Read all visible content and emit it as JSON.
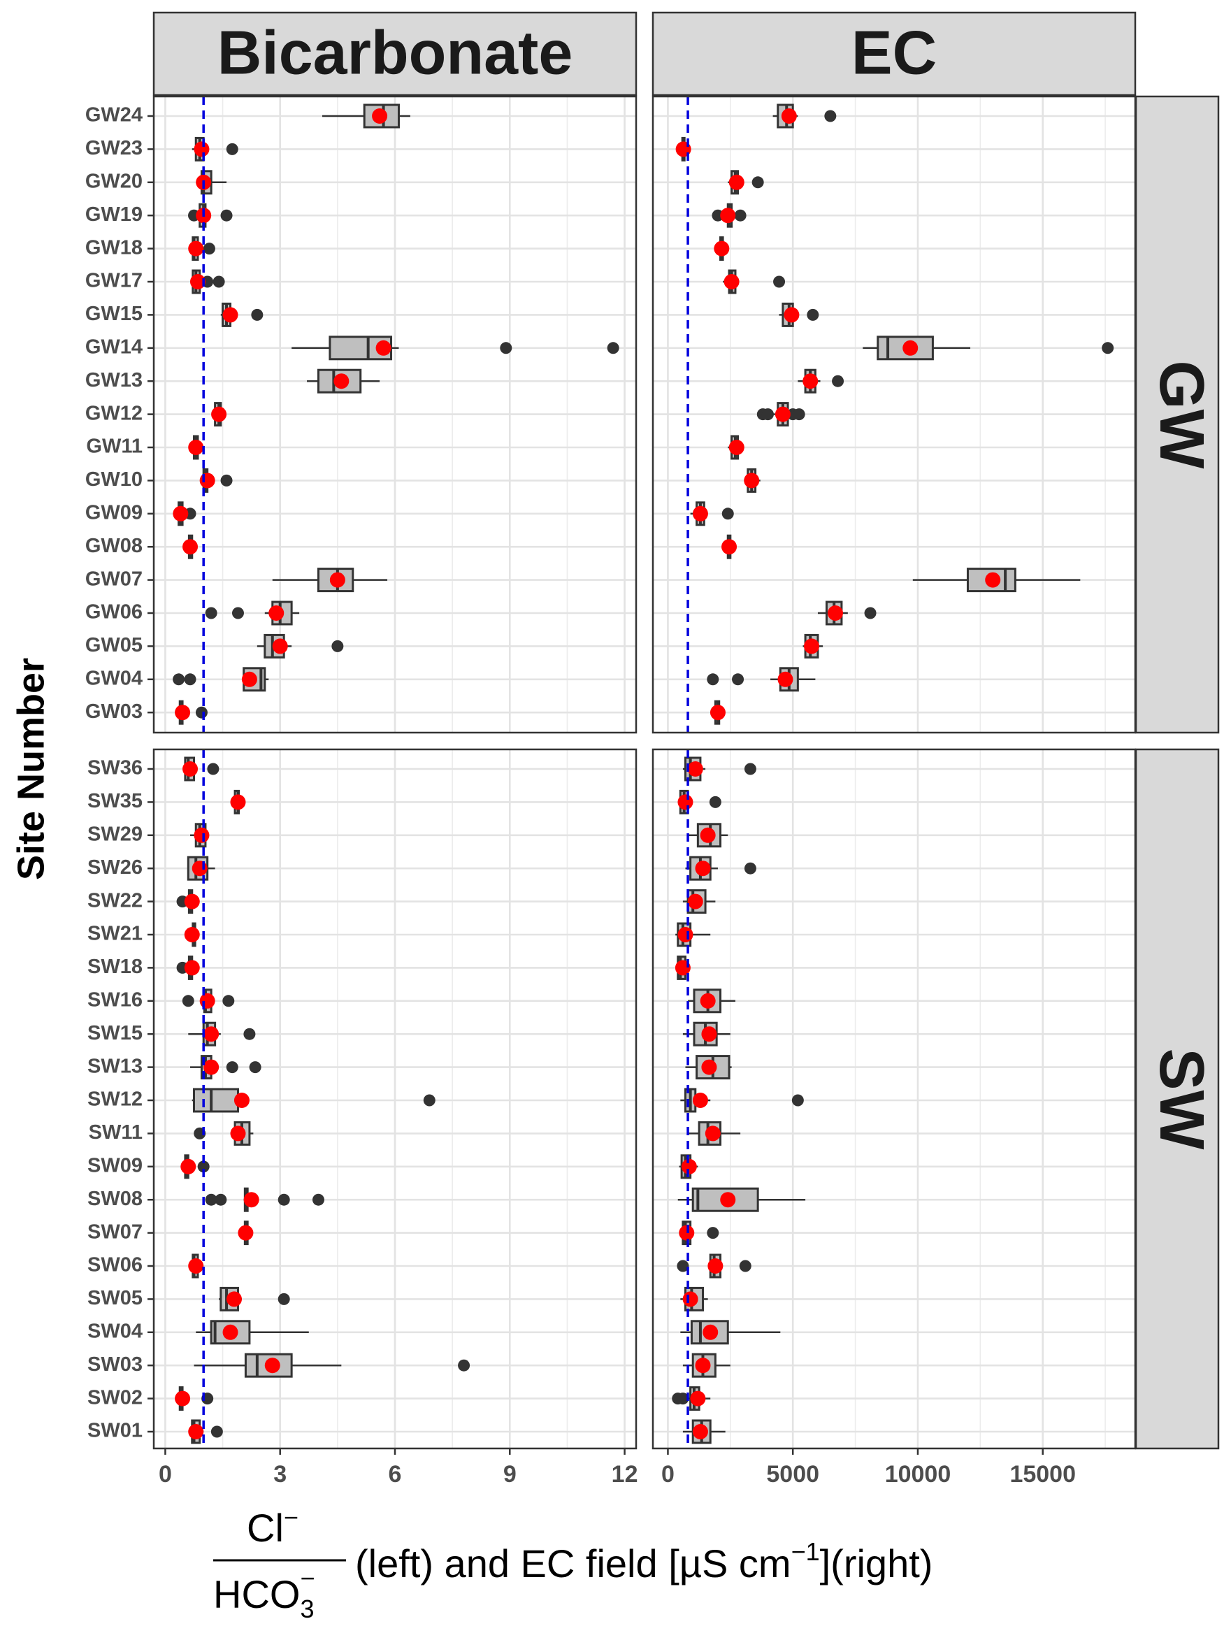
{
  "chart_data": {
    "type": "boxplot",
    "facets": {
      "columns": [
        "Bicarbonate",
        "EC"
      ],
      "rows": [
        "GW",
        "SW"
      ]
    },
    "ylabel": "Site Number",
    "xlabel": {
      "numerator": "Cl",
      "numerator_sup": "−",
      "denominator": "HCO",
      "denominator_sub": "3",
      "denominator_sup": "−",
      "text": "(left) and EC field [µS cm",
      "unit_sup": "−1",
      "tail": "](right)"
    },
    "x_axes": {
      "Bicarbonate": {
        "range": [
          -0.3,
          12.3
        ],
        "ticks": [
          0,
          3,
          6,
          9,
          12
        ],
        "tick_labels": [
          "0",
          "3",
          "6",
          "9",
          "12"
        ],
        "reference_line": 1
      },
      "EC": {
        "range": [
          -600,
          18700
        ],
        "ticks": [
          0,
          5000,
          10000,
          15000
        ],
        "tick_labels": [
          "0",
          "5000",
          "10000",
          "15000"
        ],
        "reference_line": 800
      }
    },
    "sites": {
      "GW": [
        "GW24",
        "GW23",
        "GW20",
        "GW19",
        "GW18",
        "GW17",
        "GW15",
        "GW14",
        "GW13",
        "GW12",
        "GW11",
        "GW10",
        "GW09",
        "GW08",
        "GW07",
        "GW06",
        "GW05",
        "GW04",
        "GW03"
      ],
      "SW": [
        "SW36",
        "SW35",
        "SW29",
        "SW26",
        "SW22",
        "SW21",
        "SW18",
        "SW16",
        "SW15",
        "SW13",
        "SW12",
        "SW11",
        "SW09",
        "SW08",
        "SW07",
        "SW06",
        "SW05",
        "SW04",
        "SW03",
        "SW02",
        "SW01"
      ]
    },
    "series": {
      "Bicarbonate": {
        "GW": [
          [
            4.1,
            5.2,
            5.7,
            6.1,
            6.4,
            5.6,
            []
          ],
          [
            0.7,
            0.8,
            0.9,
            1.0,
            1.1,
            0.95,
            [
              1.75
            ]
          ],
          [
            0.9,
            0.95,
            1.0,
            1.2,
            1.6,
            1.0,
            []
          ],
          [
            0.85,
            0.9,
            1.0,
            1.05,
            1.1,
            1.0,
            [
              0.75,
              1.6
            ]
          ],
          [
            0.7,
            0.72,
            0.75,
            0.85,
            0.9,
            0.8,
            [
              1.15
            ]
          ],
          [
            0.7,
            0.72,
            0.8,
            0.9,
            1.0,
            0.85,
            [
              1.1,
              1.4
            ]
          ],
          [
            1.45,
            1.5,
            1.6,
            1.7,
            1.75,
            1.7,
            [
              2.4
            ]
          ],
          [
            3.3,
            4.3,
            5.3,
            5.9,
            6.1,
            5.7,
            [
              8.9,
              11.7
            ]
          ],
          [
            3.7,
            4.0,
            4.4,
            5.1,
            5.6,
            4.6,
            []
          ],
          [
            1.25,
            1.3,
            1.4,
            1.45,
            1.5,
            1.4,
            []
          ],
          [
            0.7,
            0.75,
            0.8,
            0.85,
            0.9,
            0.8,
            []
          ],
          [
            0.95,
            1.0,
            1.05,
            1.1,
            1.15,
            1.1,
            [
              1.6
            ]
          ],
          [
            0.35,
            0.35,
            0.4,
            0.45,
            0.5,
            0.4,
            [
              0.65
            ]
          ],
          [
            0.6,
            0.62,
            0.65,
            0.7,
            0.72,
            0.65,
            []
          ],
          [
            2.8,
            4.0,
            4.5,
            4.9,
            5.8,
            4.5,
            []
          ],
          [
            2.6,
            2.8,
            3.0,
            3.3,
            3.5,
            2.9,
            [
              1.2,
              1.9
            ]
          ],
          [
            2.4,
            2.6,
            2.8,
            3.1,
            3.3,
            3.0,
            [
              4.5
            ]
          ],
          [
            2.0,
            2.05,
            2.5,
            2.6,
            2.7,
            2.2,
            [
              0.35,
              0.65
            ]
          ],
          [
            0.35,
            0.38,
            0.4,
            0.45,
            0.5,
            0.45,
            [
              0.95
            ]
          ]
        ],
        "SW": [
          [
            0.5,
            0.52,
            0.6,
            0.75,
            0.8,
            0.65,
            [
              1.25
            ]
          ],
          [
            1.8,
            1.82,
            1.9,
            1.92,
            1.95,
            1.9,
            []
          ],
          [
            0.65,
            0.8,
            0.9,
            1.05,
            1.1,
            0.95,
            []
          ],
          [
            0.6,
            0.6,
            0.8,
            1.1,
            1.3,
            0.9,
            []
          ],
          [
            0.6,
            0.62,
            0.65,
            0.7,
            0.75,
            0.7,
            [
              0.45
            ]
          ],
          [
            0.7,
            0.72,
            0.75,
            0.78,
            0.8,
            0.7,
            []
          ],
          [
            0.6,
            0.62,
            0.65,
            0.7,
            0.75,
            0.7,
            [
              0.45
            ]
          ],
          [
            1.0,
            1.02,
            1.05,
            1.2,
            1.25,
            1.1,
            [
              0.6,
              1.65
            ]
          ],
          [
            0.6,
            1.0,
            1.1,
            1.3,
            1.45,
            1.2,
            [
              2.2
            ]
          ],
          [
            0.65,
            0.95,
            1.05,
            1.2,
            1.3,
            1.2,
            [
              1.75,
              2.35
            ]
          ],
          [
            0.7,
            0.75,
            1.2,
            1.9,
            2.0,
            2.0,
            [
              6.9
            ]
          ],
          [
            1.8,
            1.82,
            2.0,
            2.2,
            2.3,
            1.9,
            [
              0.9
            ]
          ],
          [
            0.5,
            0.52,
            0.55,
            0.6,
            0.62,
            0.6,
            [
              1.0
            ]
          ],
          [
            2.05,
            2.08,
            2.1,
            2.15,
            2.2,
            2.25,
            [
              1.2,
              1.45,
              3.1,
              4.0
            ]
          ],
          [
            2.05,
            2.08,
            2.1,
            2.15,
            2.2,
            2.1,
            []
          ],
          [
            0.7,
            0.72,
            0.75,
            0.85,
            0.9,
            0.8,
            []
          ],
          [
            1.4,
            1.45,
            1.6,
            1.9,
            2.0,
            1.8,
            [
              3.1
            ]
          ],
          [
            0.8,
            1.2,
            1.3,
            2.2,
            3.75,
            1.7,
            []
          ],
          [
            0.75,
            2.1,
            2.4,
            3.3,
            4.6,
            2.8,
            [
              7.8
            ]
          ],
          [
            0.35,
            0.38,
            0.4,
            0.45,
            0.5,
            0.45,
            [
              1.1
            ]
          ],
          [
            0.65,
            0.7,
            0.75,
            0.9,
            1.0,
            0.8,
            [
              1.35
            ]
          ]
        ]
      },
      "EC": {
        "GW": [
          [
            4200,
            4400,
            4750,
            5000,
            5200,
            4850,
            [
              6500
            ]
          ],
          [
            550,
            580,
            620,
            660,
            700,
            620,
            []
          ],
          [
            2400,
            2550,
            2700,
            2800,
            2900,
            2750,
            [
              3600
            ]
          ],
          [
            2300,
            2400,
            2450,
            2550,
            2650,
            2400,
            [
              2000,
              2900
            ]
          ],
          [
            2050,
            2100,
            2150,
            2200,
            2250,
            2150,
            []
          ],
          [
            2200,
            2450,
            2550,
            2700,
            2800,
            2550,
            [
              4450
            ]
          ],
          [
            4450,
            4600,
            4850,
            5000,
            5150,
            4950,
            [
              5800
            ]
          ],
          [
            7800,
            8400,
            8800,
            10600,
            12100,
            9700,
            [
              17600
            ]
          ],
          [
            5200,
            5500,
            5700,
            5900,
            6100,
            5700,
            [
              6800
            ]
          ],
          [
            4200,
            4400,
            4600,
            4800,
            5000,
            4600,
            [
              3800,
              4000,
              5000,
              5250
            ]
          ],
          [
            2400,
            2550,
            2700,
            2800,
            2900,
            2750,
            []
          ],
          [
            3100,
            3200,
            3350,
            3500,
            3700,
            3350,
            []
          ],
          [
            900,
            1150,
            1300,
            1450,
            1550,
            1300,
            [
              2400
            ]
          ],
          [
            2350,
            2400,
            2450,
            2500,
            2550,
            2450,
            []
          ],
          [
            9800,
            12000,
            13500,
            13900,
            16500,
            13000,
            []
          ],
          [
            6000,
            6350,
            6650,
            6950,
            7200,
            6700,
            [
              8100
            ]
          ],
          [
            5400,
            5500,
            5700,
            6000,
            6200,
            5750,
            []
          ],
          [
            4100,
            4500,
            4850,
            5200,
            5900,
            4700,
            [
              1800,
              2800
            ]
          ],
          [
            1800,
            1900,
            2000,
            2050,
            2100,
            2000,
            []
          ]
        ],
        "SW": [
          [
            600,
            700,
            900,
            1300,
            1500,
            1100,
            [
              3300
            ]
          ],
          [
            400,
            500,
            650,
            800,
            900,
            700,
            [
              1900
            ]
          ],
          [
            800,
            1200,
            1700,
            2100,
            2400,
            1600,
            []
          ],
          [
            700,
            900,
            1300,
            1700,
            2000,
            1400,
            [
              3300
            ]
          ],
          [
            600,
            800,
            1000,
            1500,
            1900,
            1100,
            []
          ],
          [
            300,
            400,
            600,
            900,
            1700,
            700,
            []
          ],
          [
            350,
            400,
            500,
            700,
            800,
            600,
            []
          ],
          [
            800,
            1050,
            1600,
            2100,
            2700,
            1600,
            []
          ],
          [
            600,
            1050,
            1500,
            1950,
            2500,
            1650,
            []
          ],
          [
            700,
            1150,
            1800,
            2450,
            2550,
            1650,
            []
          ],
          [
            500,
            700,
            900,
            1100,
            1700,
            1300,
            [
              5200
            ]
          ],
          [
            800,
            1250,
            1600,
            2100,
            2900,
            1800,
            []
          ],
          [
            450,
            550,
            700,
            900,
            1200,
            850,
            []
          ],
          [
            400,
            1000,
            1200,
            3600,
            5500,
            2400,
            []
          ],
          [
            500,
            600,
            700,
            900,
            1000,
            750,
            [
              1800
            ]
          ],
          [
            1600,
            1700,
            1850,
            2100,
            2200,
            1900,
            [
              600,
              3100
            ]
          ],
          [
            500,
            700,
            950,
            1400,
            1600,
            900,
            []
          ],
          [
            500,
            950,
            1300,
            2400,
            4500,
            1700,
            []
          ],
          [
            600,
            1000,
            1400,
            1900,
            2500,
            1400,
            []
          ],
          [
            800,
            900,
            1050,
            1250,
            1700,
            1200,
            [
              400,
              600
            ]
          ],
          [
            600,
            1000,
            1350,
            1700,
            2300,
            1300,
            []
          ]
        ]
      }
    }
  }
}
